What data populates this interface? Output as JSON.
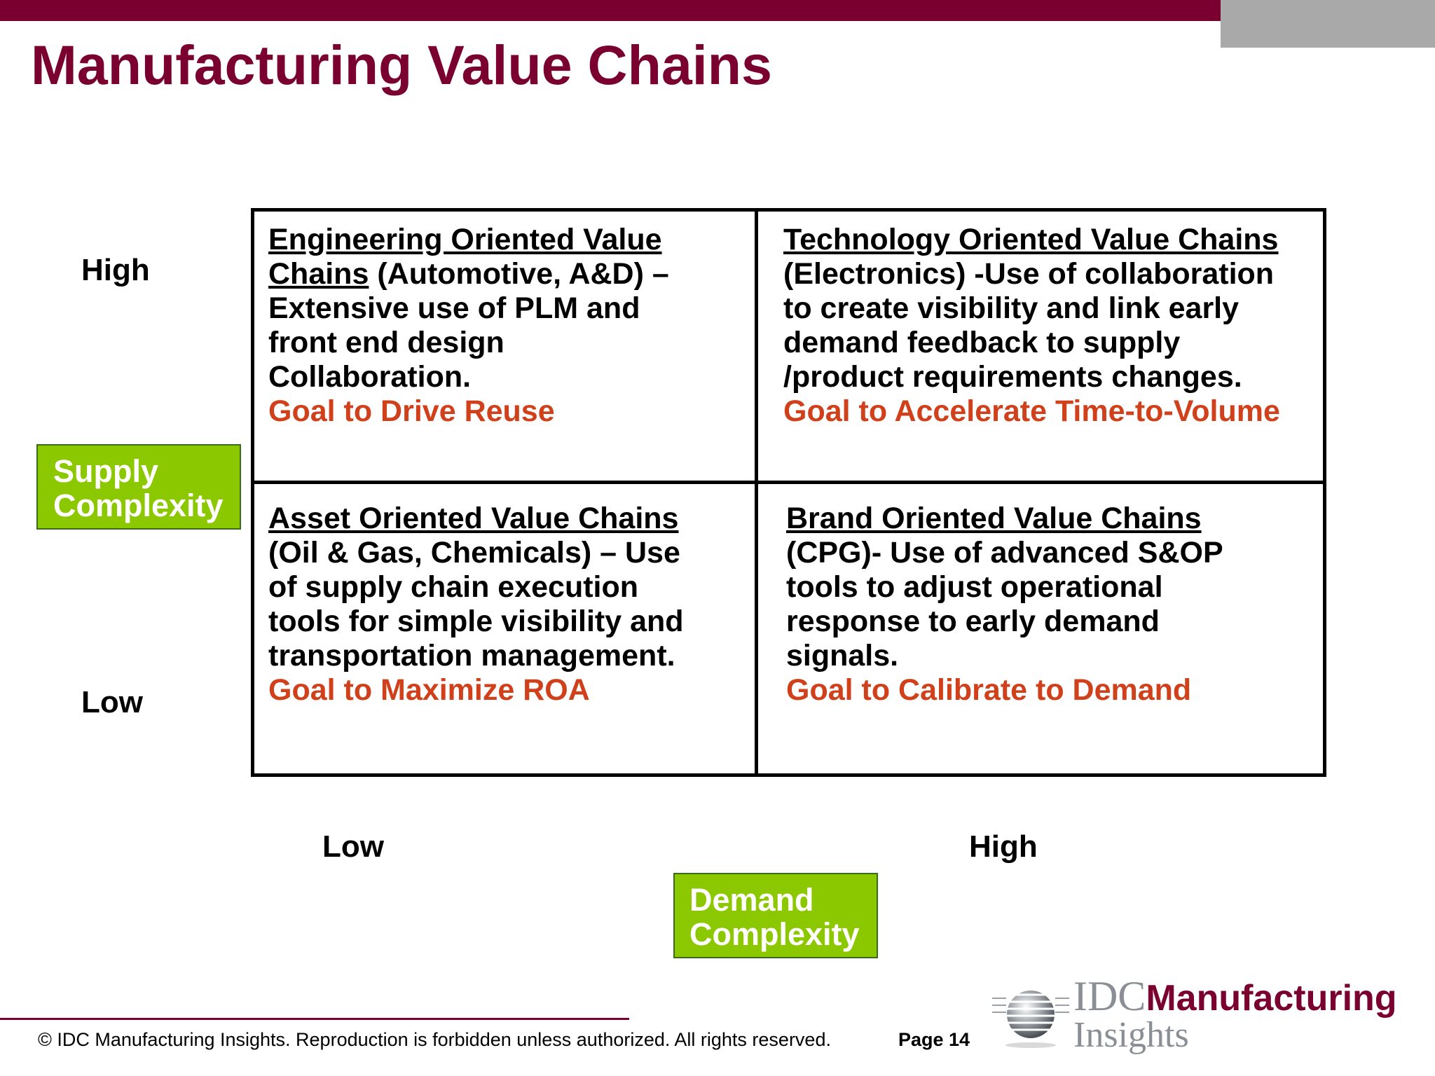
{
  "title": "Manufacturing Value Chains",
  "y_axis": {
    "name_line1": "Supply",
    "name_line2": "Complexity",
    "high": "High",
    "low": "Low"
  },
  "x_axis": {
    "name_line1": "Demand",
    "name_line2": "Complexity",
    "low": "Low",
    "high": "High"
  },
  "quadrants": {
    "top_left": {
      "heading_line1": "Engineering Oriented Value",
      "heading_line2": "Chains",
      "line2_rest": " (Automotive, A&D) –",
      "line3": "Extensive use of PLM and",
      "line4": "front end design",
      "line5": "Collaboration.",
      "goal": "Goal to Drive Reuse"
    },
    "top_right": {
      "heading": "Technology Oriented Value Chains",
      "line2": "(Electronics) -Use of collaboration",
      "line3": "to create visibility and link early",
      "line4": "demand feedback to supply",
      "line5": "/product requirements changes.",
      "goal": "Goal to Accelerate Time-to-Volume"
    },
    "bottom_left": {
      "heading": "Asset Oriented Value Chains",
      "line2": "(Oil & Gas, Chemicals) – Use",
      "line3": "of supply chain execution",
      "line4": "tools for simple visibility and",
      "line5": "transportation management.",
      "goal": "Goal to Maximize ROA"
    },
    "bottom_right": {
      "heading": "Brand Oriented Value Chains",
      "line2": "(CPG)- Use of advanced S&OP",
      "line3": "tools to adjust operational",
      "line4": "response to early demand",
      "line5": "signals.",
      "goal": "Goal to Calibrate to Demand"
    }
  },
  "footer": {
    "copyright": "© IDC Manufacturing Insights. Reproduction is forbidden unless authorized. All rights reserved.",
    "page": "Page 14"
  },
  "logo": {
    "part1": "IDC",
    "part2": "Manufacturing",
    "part3": "Insights"
  },
  "colors": {
    "brand": "#7a0030",
    "goal": "#d0401a",
    "axis_box": "#8cc800"
  }
}
